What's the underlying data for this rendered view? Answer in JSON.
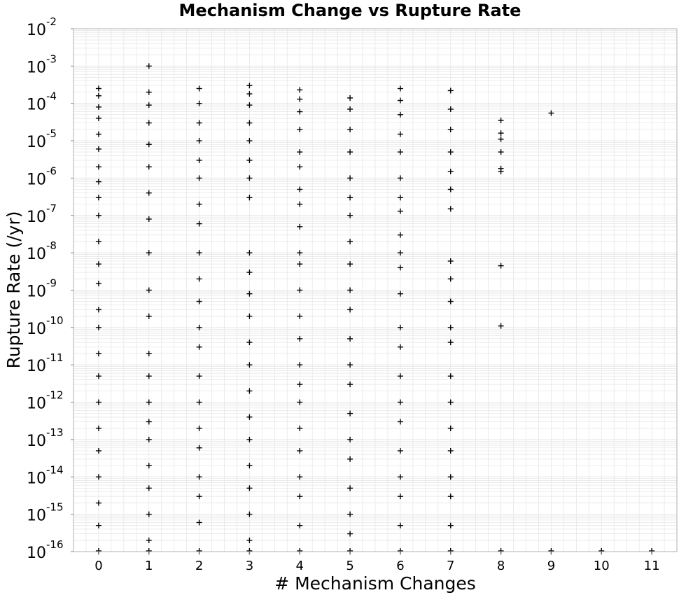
{
  "chart_data": {
    "type": "scatter",
    "title": "Mechanism Change vs Rupture Rate",
    "xlabel": "# Mechanism Changes",
    "ylabel": "Rupture Rate (/yr)",
    "x_scale": "linear",
    "y_scale": "log",
    "xlim": [
      -0.5,
      11.5
    ],
    "ylim": [
      1e-16,
      0.01
    ],
    "x_ticks": [
      "0",
      "1",
      "2",
      "3",
      "4",
      "5",
      "6",
      "7",
      "8",
      "9",
      "10",
      "11"
    ],
    "y_ticks": [
      {
        "base": "10",
        "exp": "-16",
        "value": 1e-16
      },
      {
        "base": "10",
        "exp": "-15",
        "value": 1e-15
      },
      {
        "base": "10",
        "exp": "-14",
        "value": 1e-14
      },
      {
        "base": "10",
        "exp": "-13",
        "value": 1e-13
      },
      {
        "base": "10",
        "exp": "-12",
        "value": 1e-12
      },
      {
        "base": "10",
        "exp": "-11",
        "value": 1e-11
      },
      {
        "base": "10",
        "exp": "-10",
        "value": 1e-10
      },
      {
        "base": "10",
        "exp": "-9",
        "value": 1e-09
      },
      {
        "base": "10",
        "exp": "-8",
        "value": 1e-08
      },
      {
        "base": "10",
        "exp": "-7",
        "value": 1e-07
      },
      {
        "base": "10",
        "exp": "-6",
        "value": 1e-06
      },
      {
        "base": "10",
        "exp": "-5",
        "value": 1e-05
      },
      {
        "base": "10",
        "exp": "-4",
        "value": 0.0001
      },
      {
        "base": "10",
        "exp": "-3",
        "value": 0.001
      },
      {
        "base": "10",
        "exp": "-2",
        "value": 0.01
      }
    ],
    "grid": true,
    "marker": "plus",
    "colors": {
      "marker": "#000000",
      "grid": "#e6e6e6",
      "axis": "#b0b0b0"
    },
    "series": [
      {
        "points": [
          [
            0,
            0.00025
          ],
          [
            0,
            0.00016
          ],
          [
            0,
            8e-05
          ],
          [
            0,
            4e-05
          ],
          [
            0,
            1.5e-05
          ],
          [
            0,
            6e-06
          ],
          [
            0,
            2e-06
          ],
          [
            0,
            8e-07
          ],
          [
            0,
            3e-07
          ],
          [
            0,
            1e-07
          ],
          [
            0,
            2e-08
          ],
          [
            0,
            5e-09
          ],
          [
            0,
            1.5e-09
          ],
          [
            0,
            3e-10
          ],
          [
            0,
            1e-10
          ],
          [
            0,
            2e-11
          ],
          [
            0,
            5e-12
          ],
          [
            0,
            1e-12
          ],
          [
            0,
            2e-13
          ],
          [
            0,
            5e-14
          ],
          [
            0,
            1e-14
          ],
          [
            0,
            2e-15
          ],
          [
            0,
            5e-16
          ],
          [
            0,
            1e-16
          ],
          [
            1,
            0.001
          ],
          [
            1,
            0.0002
          ],
          [
            1,
            9e-05
          ],
          [
            1,
            3e-05
          ],
          [
            1,
            8e-06
          ],
          [
            1,
            2e-06
          ],
          [
            1,
            4e-07
          ],
          [
            1,
            8e-08
          ],
          [
            1,
            1e-08
          ],
          [
            1,
            1e-09
          ],
          [
            1,
            2e-10
          ],
          [
            1,
            2e-11
          ],
          [
            1,
            5e-12
          ],
          [
            1,
            1e-12
          ],
          [
            1,
            3e-13
          ],
          [
            1,
            1e-13
          ],
          [
            1,
            2e-14
          ],
          [
            1,
            5e-15
          ],
          [
            1,
            1e-15
          ],
          [
            1,
            2e-16
          ],
          [
            1,
            1e-16
          ],
          [
            2,
            0.00025
          ],
          [
            2,
            0.0001
          ],
          [
            2,
            3e-05
          ],
          [
            2,
            1e-05
          ],
          [
            2,
            3e-06
          ],
          [
            2,
            1e-06
          ],
          [
            2,
            2e-07
          ],
          [
            2,
            6e-08
          ],
          [
            2,
            1e-08
          ],
          [
            2,
            2e-09
          ],
          [
            2,
            5e-10
          ],
          [
            2,
            1e-10
          ],
          [
            2,
            3e-11
          ],
          [
            2,
            5e-12
          ],
          [
            2,
            1e-12
          ],
          [
            2,
            2e-13
          ],
          [
            2,
            6e-14
          ],
          [
            2,
            1e-14
          ],
          [
            2,
            3e-15
          ],
          [
            2,
            6e-16
          ],
          [
            2,
            1e-16
          ],
          [
            3,
            0.0003
          ],
          [
            3,
            0.00018
          ],
          [
            3,
            9e-05
          ],
          [
            3,
            3e-05
          ],
          [
            3,
            1e-05
          ],
          [
            3,
            3e-06
          ],
          [
            3,
            1e-06
          ],
          [
            3,
            3e-07
          ],
          [
            3,
            1e-08
          ],
          [
            3,
            3e-09
          ],
          [
            3,
            8e-10
          ],
          [
            3,
            2e-10
          ],
          [
            3,
            4e-11
          ],
          [
            3,
            1e-11
          ],
          [
            3,
            2e-12
          ],
          [
            3,
            4e-13
          ],
          [
            3,
            1e-13
          ],
          [
            3,
            2e-14
          ],
          [
            3,
            5e-15
          ],
          [
            3,
            1e-15
          ],
          [
            3,
            2e-16
          ],
          [
            3,
            1e-16
          ],
          [
            4,
            0.00023
          ],
          [
            4,
            0.00013
          ],
          [
            4,
            6e-05
          ],
          [
            4,
            2e-05
          ],
          [
            4,
            5e-06
          ],
          [
            4,
            2e-06
          ],
          [
            4,
            5e-07
          ],
          [
            4,
            2e-07
          ],
          [
            4,
            5e-08
          ],
          [
            4,
            1e-08
          ],
          [
            4,
            5e-09
          ],
          [
            4,
            1e-09
          ],
          [
            4,
            2e-10
          ],
          [
            4,
            5e-11
          ],
          [
            4,
            1e-11
          ],
          [
            4,
            3e-12
          ],
          [
            4,
            1e-12
          ],
          [
            4,
            2e-13
          ],
          [
            4,
            5e-14
          ],
          [
            4,
            1e-14
          ],
          [
            4,
            3e-15
          ],
          [
            4,
            5e-16
          ],
          [
            4,
            1e-16
          ],
          [
            5,
            0.00014
          ],
          [
            5,
            7e-05
          ],
          [
            5,
            2e-05
          ],
          [
            5,
            5e-06
          ],
          [
            5,
            1e-06
          ],
          [
            5,
            3e-07
          ],
          [
            5,
            1e-07
          ],
          [
            5,
            2e-08
          ],
          [
            5,
            5e-09
          ],
          [
            5,
            1e-09
          ],
          [
            5,
            3e-10
          ],
          [
            5,
            5e-11
          ],
          [
            5,
            1e-11
          ],
          [
            5,
            3e-12
          ],
          [
            5,
            5e-13
          ],
          [
            5,
            1e-13
          ],
          [
            5,
            3e-14
          ],
          [
            5,
            5e-15
          ],
          [
            5,
            1e-15
          ],
          [
            5,
            3e-16
          ],
          [
            5,
            1e-16
          ],
          [
            6,
            0.00025
          ],
          [
            6,
            0.00012
          ],
          [
            6,
            5e-05
          ],
          [
            6,
            1.5e-05
          ],
          [
            6,
            5e-06
          ],
          [
            6,
            1e-06
          ],
          [
            6,
            3e-07
          ],
          [
            6,
            1.3e-07
          ],
          [
            6,
            3e-08
          ],
          [
            6,
            1e-08
          ],
          [
            6,
            4e-09
          ],
          [
            6,
            8e-10
          ],
          [
            6,
            1e-10
          ],
          [
            6,
            3e-11
          ],
          [
            6,
            5e-12
          ],
          [
            6,
            1e-12
          ],
          [
            6,
            3e-13
          ],
          [
            6,
            5e-14
          ],
          [
            6,
            1e-14
          ],
          [
            6,
            3e-15
          ],
          [
            6,
            5e-16
          ],
          [
            6,
            1e-16
          ],
          [
            7,
            0.00022
          ],
          [
            7,
            7e-05
          ],
          [
            7,
            2e-05
          ],
          [
            7,
            5e-06
          ],
          [
            7,
            1.5e-06
          ],
          [
            7,
            5e-07
          ],
          [
            7,
            1.5e-07
          ],
          [
            7,
            6e-09
          ],
          [
            7,
            2e-09
          ],
          [
            7,
            5e-10
          ],
          [
            7,
            1e-10
          ],
          [
            7,
            4e-11
          ],
          [
            7,
            5e-12
          ],
          [
            7,
            1e-12
          ],
          [
            7,
            2e-13
          ],
          [
            7,
            5e-14
          ],
          [
            7,
            1e-14
          ],
          [
            7,
            3e-15
          ],
          [
            7,
            5e-16
          ],
          [
            7,
            1e-16
          ],
          [
            8,
            3.5e-05
          ],
          [
            8,
            1.6e-05
          ],
          [
            8,
            1.1e-05
          ],
          [
            8,
            5e-06
          ],
          [
            8,
            1.8e-06
          ],
          [
            8,
            1.5e-06
          ],
          [
            8,
            4.5e-09
          ],
          [
            8,
            1.1e-10
          ],
          [
            8,
            1e-16
          ],
          [
            9,
            5.5e-05
          ],
          [
            9,
            1e-16
          ],
          [
            10,
            1e-16
          ],
          [
            11,
            1e-16
          ]
        ]
      }
    ]
  }
}
